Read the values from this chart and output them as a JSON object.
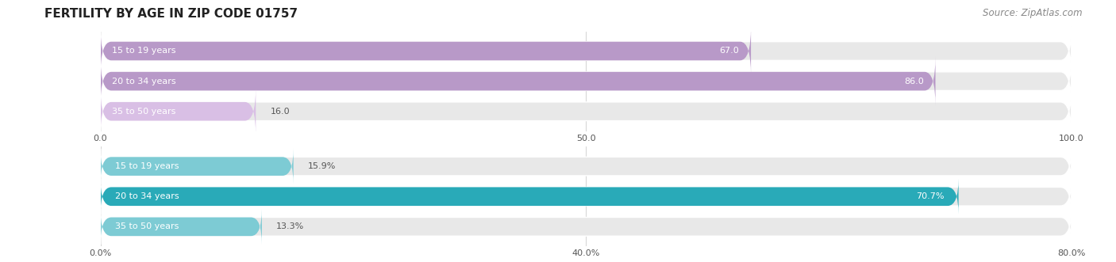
{
  "title": "FERTILITY BY AGE IN ZIP CODE 01757",
  "source": "Source: ZipAtlas.com",
  "top_bars": {
    "categories": [
      "15 to 19 years",
      "20 to 34 years",
      "35 to 50 years"
    ],
    "values": [
      67.0,
      86.0,
      16.0
    ],
    "max_value": 100.0,
    "x_ticks": [
      0.0,
      50.0,
      100.0
    ],
    "x_tick_labels": [
      "0.0",
      "50.0",
      "100.0"
    ],
    "bar_color_strong": "#b899c8",
    "bar_color_light": "#d9bfe5",
    "bg_color": "#e8e8e8"
  },
  "bottom_bars": {
    "categories": [
      "15 to 19 years",
      "20 to 34 years",
      "35 to 50 years"
    ],
    "values": [
      15.9,
      70.7,
      13.3
    ],
    "max_value": 80.0,
    "x_ticks": [
      0.0,
      40.0,
      80.0
    ],
    "x_tick_labels": [
      "0.0%",
      "40.0%",
      "80.0%"
    ],
    "bar_color_strong": "#29aab8",
    "bar_color_light": "#7dcbd4",
    "bg_color": "#e8e8e8"
  },
  "title_fontsize": 11,
  "source_fontsize": 8.5,
  "label_fontsize": 8,
  "value_fontsize": 8,
  "bar_height": 0.62,
  "label_color": "#555555",
  "title_color": "#222222",
  "source_color": "#888888"
}
